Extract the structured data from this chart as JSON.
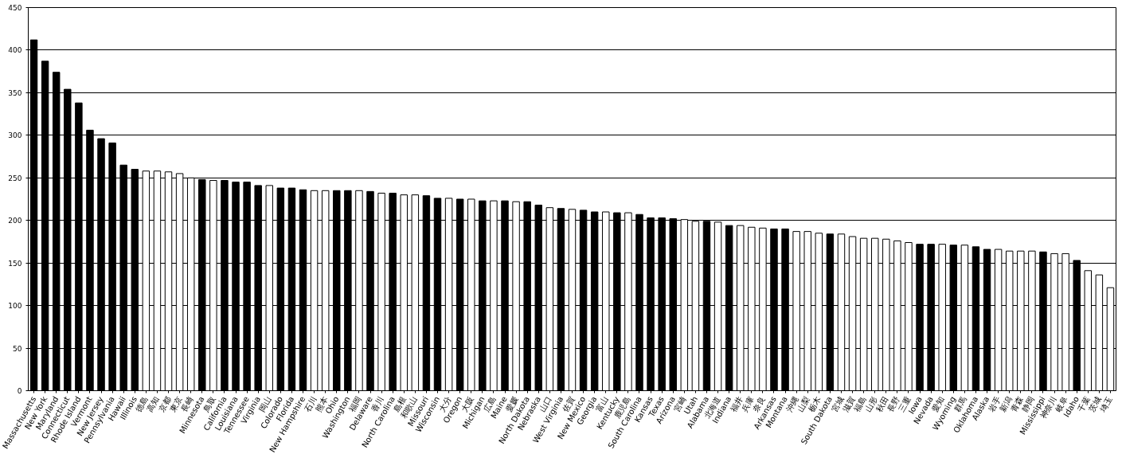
{
  "chart_data": {
    "type": "bar",
    "categories": [
      "Massachusetts",
      "New York",
      "Maryland",
      "Connecticut",
      "Rhode Island",
      "Vermont",
      "New Jersey",
      "Pennsylvania",
      "Hawaii",
      "Illinois",
      "徳島",
      "高知",
      "京都",
      "東京",
      "長崎",
      "Minnesota",
      "鳥取",
      "California",
      "Louisiana",
      "Tennessee",
      "Virginia",
      "岡山",
      "Colorado",
      "Florida",
      "New Hampshire",
      "石川",
      "熊本",
      "Ohio",
      "Washington",
      "福岡",
      "Delaware",
      "香川",
      "North Carolina",
      "島根",
      "和歌山",
      "Missouri",
      "Wisconsin",
      "大分",
      "Oregon",
      "大阪",
      "Michigan",
      "広島",
      "Maine",
      "愛媛",
      "North Dakota",
      "Nebraska",
      "山口",
      "West Virginia",
      "佐賀",
      "New Mexico",
      "Georgia",
      "富山",
      "Kentucky",
      "鹿児島",
      "South Carolina",
      "Kansas",
      "Texas",
      "Arizona",
      "宮崎",
      "Utah",
      "Alabama",
      "北海道",
      "Indiana",
      "福井",
      "兵庫",
      "奈良",
      "Arkansas",
      "Montana",
      "沖縄",
      "山梨",
      "栃木",
      "South Dakota",
      "宮城",
      "滋賀",
      "福島",
      "山形",
      "秋田",
      "長野",
      "三重",
      "Iowa",
      "Nevada",
      "愛知",
      "Wyoming",
      "群馬",
      "Oklahoma",
      "Alaska",
      "岩手",
      "新潟",
      "青森",
      "静岡",
      "Mississippi",
      "神奈川",
      "岐阜",
      "Idaho",
      "千葉",
      "茨城",
      "埼玉"
    ],
    "values": [
      412,
      387,
      374,
      354,
      338,
      306,
      296,
      291,
      265,
      260,
      258,
      258,
      257,
      255,
      250,
      248,
      247,
      247,
      245,
      245,
      241,
      241,
      238,
      238,
      236,
      235,
      235,
      235,
      235,
      235,
      234,
      232,
      232,
      230,
      230,
      229,
      226,
      226,
      225,
      225,
      223,
      223,
      223,
      222,
      222,
      218,
      215,
      214,
      213,
      212,
      210,
      210,
      209,
      209,
      207,
      203,
      203,
      202,
      201,
      199,
      199,
      198,
      194,
      194,
      192,
      191,
      190,
      190,
      187,
      187,
      185,
      184,
      184,
      181,
      179,
      179,
      178,
      176,
      174,
      172,
      172,
      172,
      171,
      171,
      169,
      166,
      166,
      164,
      164,
      164,
      163,
      161,
      161,
      153,
      141,
      136,
      121
    ],
    "colors": [
      "#000000",
      "#000000",
      "#000000",
      "#000000",
      "#000000",
      "#000000",
      "#000000",
      "#000000",
      "#000000",
      "#000000",
      "#ffffff",
      "#ffffff",
      "#ffffff",
      "#ffffff",
      "#ffffff",
      "#000000",
      "#ffffff",
      "#000000",
      "#000000",
      "#000000",
      "#000000",
      "#ffffff",
      "#000000",
      "#000000",
      "#000000",
      "#ffffff",
      "#ffffff",
      "#000000",
      "#000000",
      "#ffffff",
      "#000000",
      "#ffffff",
      "#000000",
      "#ffffff",
      "#ffffff",
      "#000000",
      "#000000",
      "#ffffff",
      "#000000",
      "#ffffff",
      "#000000",
      "#ffffff",
      "#000000",
      "#ffffff",
      "#000000",
      "#000000",
      "#ffffff",
      "#000000",
      "#ffffff",
      "#000000",
      "#000000",
      "#ffffff",
      "#000000",
      "#ffffff",
      "#000000",
      "#000000",
      "#000000",
      "#000000",
      "#ffffff",
      "#ffffff",
      "#000000",
      "#ffffff",
      "#000000",
      "#ffffff",
      "#ffffff",
      "#ffffff",
      "#000000",
      "#000000",
      "#ffffff",
      "#ffffff",
      "#ffffff",
      "#000000",
      "#ffffff",
      "#ffffff",
      "#ffffff",
      "#ffffff",
      "#ffffff",
      "#ffffff",
      "#ffffff",
      "#000000",
      "#000000",
      "#ffffff",
      "#000000",
      "#ffffff",
      "#000000",
      "#000000",
      "#ffffff",
      "#ffffff",
      "#ffffff",
      "#ffffff",
      "#000000",
      "#ffffff",
      "#ffffff",
      "#000000",
      "#ffffff",
      "#ffffff",
      "#ffffff"
    ],
    "ylim": [
      0,
      450
    ],
    "yticks": [
      0,
      50,
      100,
      150,
      200,
      250,
      300,
      350,
      400,
      450
    ],
    "grid": "y"
  }
}
